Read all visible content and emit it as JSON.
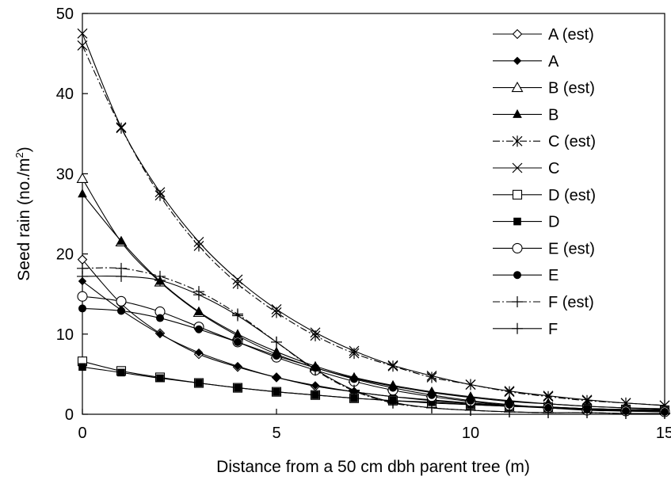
{
  "chart_data": {
    "type": "line",
    "title": "",
    "xlabel": "Distance from a 50 cm dbh parent tree (m)",
    "ylabel_main": "Seed rain (no./m",
    "ylabel_sup": "2",
    "ylabel_tail": ")",
    "xlim": [
      0,
      15
    ],
    "ylim": [
      0,
      50
    ],
    "x_ticks": [
      "0",
      "5",
      "10",
      "15"
    ],
    "y_ticks": [
      "0",
      "10",
      "20",
      "30",
      "40",
      "50"
    ],
    "grid": false,
    "legend_position": "right",
    "x": [
      0,
      1,
      2,
      3,
      4,
      5,
      6,
      7,
      8,
      9,
      10,
      11,
      12,
      13,
      14,
      15
    ],
    "series": [
      {
        "name": "A (est)",
        "marker": "diamond-open",
        "dash": "solid",
        "values": [
          19.3,
          13.8,
          10.1,
          7.5,
          5.9,
          4.6,
          3.5,
          2.8,
          2.2,
          1.8,
          1.4,
          1.1,
          0.9,
          0.7,
          0.6,
          0.5
        ]
      },
      {
        "name": "A",
        "marker": "diamond-filled",
        "dash": "solid",
        "values": [
          16.6,
          13.0,
          10.0,
          7.7,
          6.0,
          4.6,
          3.6,
          2.8,
          2.2,
          1.7,
          1.3,
          1.0,
          0.8,
          0.6,
          0.5,
          0.4
        ]
      },
      {
        "name": "B (est)",
        "marker": "triangle-open",
        "dash": "solid",
        "values": [
          29.4,
          21.5,
          16.5,
          12.7,
          9.8,
          7.5,
          5.8,
          4.5,
          3.5,
          2.7,
          2.1,
          1.6,
          1.3,
          1.0,
          0.8,
          0.6
        ]
      },
      {
        "name": "B",
        "marker": "triangle-filled",
        "dash": "solid",
        "values": [
          27.5,
          21.6,
          16.6,
          12.8,
          10.0,
          7.8,
          6.0,
          4.6,
          3.6,
          2.8,
          2.2,
          1.7,
          1.3,
          1.0,
          0.8,
          0.7
        ]
      },
      {
        "name": "C (est)",
        "marker": "asterisk",
        "dash": "dashdot",
        "values": [
          46.0,
          35.7,
          27.3,
          21.0,
          16.3,
          12.7,
          9.8,
          7.6,
          6.0,
          4.6,
          3.7,
          2.8,
          2.2,
          1.7,
          1.4,
          1.1
        ]
      },
      {
        "name": "C",
        "marker": "x",
        "dash": "solid",
        "values": [
          47.5,
          35.8,
          27.7,
          21.5,
          16.8,
          13.1,
          10.2,
          7.9,
          6.1,
          4.8,
          3.7,
          2.9,
          2.3,
          1.8,
          1.4,
          1.1
        ]
      },
      {
        "name": "D (est)",
        "marker": "square-open",
        "dash": "solid",
        "values": [
          6.6,
          5.4,
          4.6,
          3.9,
          3.3,
          2.8,
          2.4,
          2.0,
          1.7,
          1.4,
          1.2,
          1.0,
          0.9,
          0.7,
          0.6,
          0.5
        ]
      },
      {
        "name": "D",
        "marker": "square-filled",
        "dash": "solid",
        "values": [
          5.9,
          5.2,
          4.5,
          3.9,
          3.3,
          2.8,
          2.4,
          2.0,
          1.7,
          1.5,
          1.2,
          1.0,
          0.9,
          0.7,
          0.6,
          0.5
        ]
      },
      {
        "name": "E (est)",
        "marker": "circle-open",
        "dash": "solid",
        "values": [
          14.7,
          14.1,
          12.8,
          10.9,
          9.0,
          7.1,
          5.5,
          4.1,
          3.0,
          2.2,
          1.6,
          1.1,
          0.8,
          0.5,
          0.4,
          0.3
        ]
      },
      {
        "name": "E",
        "marker": "circle-filled",
        "dash": "solid",
        "values": [
          13.2,
          12.9,
          12.0,
          10.6,
          9.0,
          7.3,
          5.8,
          4.4,
          3.3,
          2.4,
          1.7,
          1.2,
          0.8,
          0.6,
          0.4,
          0.3
        ]
      },
      {
        "name": "F (est)",
        "marker": "plus",
        "dash": "dashdot",
        "values": [
          18.2,
          18.2,
          17.2,
          15.3,
          12.5,
          9.0,
          5.5,
          2.9,
          1.4,
          0.8,
          0.5,
          0.3,
          0.2,
          0.2,
          0.1,
          0.1
        ]
      },
      {
        "name": "F",
        "marker": "plus",
        "dash": "solid",
        "values": [
          17.2,
          17.2,
          16.7,
          14.9,
          12.3,
          9.0,
          5.6,
          3.0,
          1.5,
          0.8,
          0.5,
          0.3,
          0.2,
          0.2,
          0.1,
          0.1
        ]
      }
    ]
  }
}
